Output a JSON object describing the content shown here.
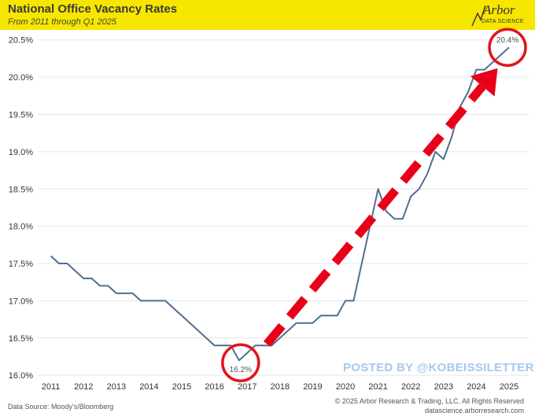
{
  "header": {
    "title": "National Office Vacancy Rates",
    "subtitle": "From 2011 through Q1 2025",
    "logo_text": "Arbor",
    "logo_subtext": "DATA SCIENCE"
  },
  "footer": {
    "source": "Data Source: Moody's/Bloomberg",
    "copyright": "© 2025 Arbor Research & Trading, LLC. All Rights Reserved",
    "url": "datascience.arborresearch.com"
  },
  "watermark": "POSTED BY @KOBEISSILETTER",
  "colors": {
    "banner": "#f7e600",
    "line": "#4f6f8f",
    "arrow": "#e8001a",
    "circle": "#e0141e",
    "grid": "#e6e6e6"
  },
  "chart_data": {
    "type": "line",
    "title": "National Office Vacancy Rates",
    "subtitle": "From 2011 through Q1 2025",
    "xlabel": "",
    "ylabel": "",
    "xlim": [
      2010.6,
      2025.6
    ],
    "ylim": [
      15.97,
      20.55
    ],
    "grid": true,
    "y_ticks": [
      16.0,
      16.5,
      17.0,
      17.5,
      18.0,
      18.5,
      19.0,
      19.5,
      20.0,
      20.5
    ],
    "y_tick_labels": [
      "16.0%",
      "16.5%",
      "17.0%",
      "17.5%",
      "18.0%",
      "18.5%",
      "19.0%",
      "19.5%",
      "20.0%",
      "20.5%"
    ],
    "x_ticks": [
      2011,
      2012,
      2013,
      2014,
      2015,
      2016,
      2017,
      2018,
      2019,
      2020,
      2021,
      2022,
      2023,
      2024,
      2025
    ],
    "x_tick_labels": [
      "2011",
      "2012",
      "2013",
      "2014",
      "2015",
      "2016",
      "2017",
      "2018",
      "2019",
      "2020",
      "2021",
      "2022",
      "2023",
      "2024",
      "2025"
    ],
    "series": [
      {
        "name": "National Office Vacancy Rate",
        "x": [
          2011.0,
          2011.25,
          2011.5,
          2011.75,
          2012.0,
          2012.25,
          2012.5,
          2012.75,
          2013.0,
          2013.25,
          2013.5,
          2013.75,
          2014.0,
          2014.25,
          2014.5,
          2014.75,
          2015.0,
          2015.25,
          2015.5,
          2015.75,
          2016.0,
          2016.25,
          2016.5,
          2016.75,
          2017.0,
          2017.25,
          2017.5,
          2017.75,
          2018.0,
          2018.25,
          2018.5,
          2018.75,
          2019.0,
          2019.25,
          2019.5,
          2019.75,
          2020.0,
          2020.25,
          2020.5,
          2020.75,
          2021.0,
          2021.25,
          2021.5,
          2021.75,
          2022.0,
          2022.25,
          2022.5,
          2022.75,
          2023.0,
          2023.25,
          2023.5,
          2023.75,
          2024.0,
          2024.25,
          2024.5,
          2024.75,
          2025.0
        ],
        "values": [
          17.6,
          17.5,
          17.5,
          17.4,
          17.3,
          17.3,
          17.2,
          17.2,
          17.1,
          17.1,
          17.1,
          17.0,
          17.0,
          17.0,
          17.0,
          16.9,
          16.8,
          16.7,
          16.6,
          16.5,
          16.4,
          16.4,
          16.4,
          16.2,
          16.3,
          16.4,
          16.4,
          16.4,
          16.5,
          16.6,
          16.7,
          16.7,
          16.7,
          16.8,
          16.8,
          16.8,
          17.0,
          17.0,
          17.5,
          18.0,
          18.5,
          18.2,
          18.1,
          18.1,
          18.4,
          18.5,
          18.7,
          19.0,
          18.9,
          19.2,
          19.6,
          19.8,
          20.1,
          20.1,
          20.2,
          20.3,
          20.4
        ]
      }
    ],
    "annotations": [
      {
        "label": "16.2%",
        "x": 2016.75,
        "y": 16.2,
        "shape": "red circle"
      },
      {
        "label": "20.4%",
        "x": 2025.0,
        "y": 20.4,
        "shape": "red circle"
      },
      {
        "label": "",
        "from": [
          2017.6,
          16.42
        ],
        "to": [
          2024.65,
          20.12
        ],
        "shape": "red dashed arrow"
      }
    ]
  }
}
